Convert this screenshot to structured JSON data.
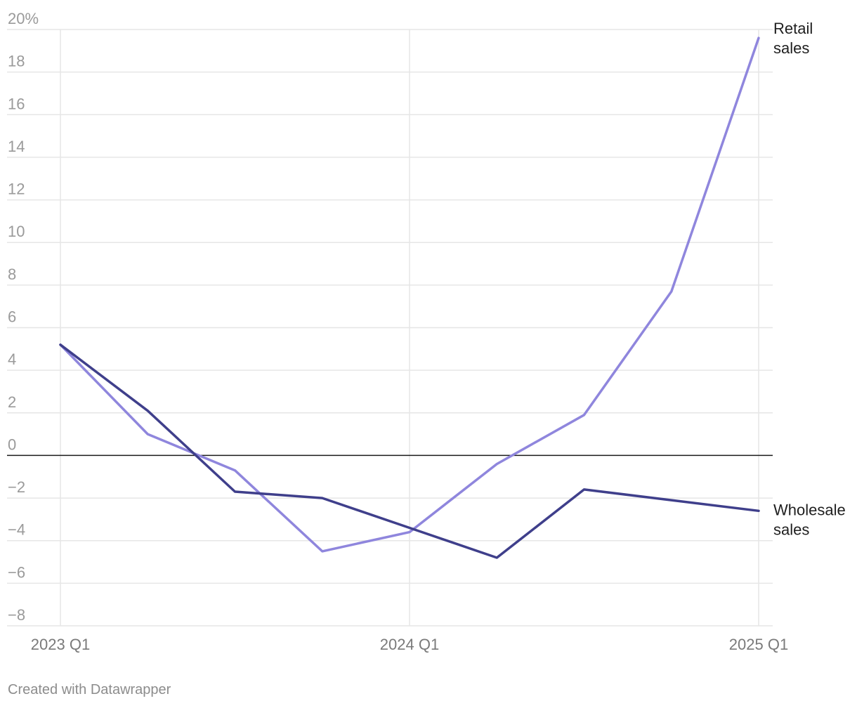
{
  "chart_data": {
    "type": "line",
    "x": [
      "2023 Q1",
      "2023 Q2",
      "2023 Q3",
      "2023 Q4",
      "2024 Q1",
      "2024 Q2",
      "2024 Q3",
      "2024 Q4",
      "2025 Q1"
    ],
    "x_tick_labels": [
      "2023 Q1",
      "2024 Q1",
      "2025 Q1"
    ],
    "series": [
      {
        "name": "Retail sales",
        "color": "#8f86dd",
        "values": [
          5.2,
          1.0,
          -0.7,
          -4.5,
          -3.6,
          -0.4,
          1.9,
          7.7,
          19.6
        ]
      },
      {
        "name": "Wholesale sales",
        "color": "#3f3f8b",
        "values": [
          5.2,
          2.1,
          -1.7,
          -2.0,
          -3.4,
          -4.8,
          -1.6,
          -2.1,
          -2.6
        ]
      }
    ],
    "series_labels": [
      {
        "lines": [
          "Retail",
          "sales"
        ]
      },
      {
        "lines": [
          "Wholesale",
          "sales"
        ]
      }
    ],
    "y_ticks": [
      20,
      18,
      16,
      14,
      12,
      10,
      8,
      6,
      4,
      2,
      0,
      -2,
      -4,
      -6,
      -8
    ],
    "y_tick_labels": [
      "20%",
      "18",
      "16",
      "14",
      "12",
      "10",
      "8",
      "6",
      "4",
      "2",
      "0",
      "−2",
      "−4",
      "−6",
      "−8"
    ],
    "ylim": [
      -8,
      20
    ],
    "grid": true,
    "zero_line": true,
    "title": "",
    "xlabel": "",
    "ylabel": ""
  },
  "footer": {
    "credit": "Created with Datawrapper"
  }
}
